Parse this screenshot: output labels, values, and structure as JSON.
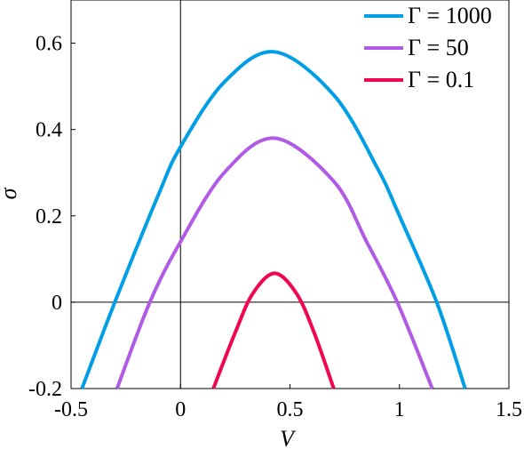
{
  "chart_data": {
    "type": "line",
    "xlabel": "V",
    "ylabel": "σ",
    "xlim": [
      -0.5,
      1.5
    ],
    "ylim": [
      -0.2,
      0.7
    ],
    "xticks": [
      "-0.5",
      "0",
      "0.5",
      "1",
      "1.5"
    ],
    "yticks": [
      "-0.2",
      "0",
      "0.2",
      "0.4",
      "0.6"
    ],
    "grid": false,
    "legend_position": "top-right",
    "reference_lines": {
      "x": 0,
      "y": 0
    },
    "series": [
      {
        "name": "Γ = 1000",
        "color": "#009ee6",
        "x": [
          -0.45,
          -0.3,
          -0.1,
          0,
          0.2,
          0.43,
          0.7,
          0.9,
          1.0,
          1.17,
          1.3
        ],
        "y": [
          -0.2,
          0.0,
          0.25,
          0.36,
          0.51,
          0.58,
          0.48,
          0.31,
          0.2,
          0.0,
          -0.2
        ]
      },
      {
        "name": "Γ = 50",
        "color": "#b15ae6",
        "x": [
          -0.29,
          -0.14,
          0,
          0.2,
          0.43,
          0.7,
          0.85,
          0.99,
          1.15
        ],
        "y": [
          -0.2,
          0.0,
          0.14,
          0.3,
          0.38,
          0.28,
          0.14,
          0.0,
          -0.2
        ]
      },
      {
        "name": "Γ = 0.1",
        "color": "#f0054f",
        "x": [
          0.15,
          0.25,
          0.33,
          0.43,
          0.53,
          0.61,
          0.7
        ],
        "y": [
          -0.2,
          -0.07,
          0.02,
          0.067,
          0.02,
          -0.07,
          -0.2
        ]
      }
    ]
  }
}
